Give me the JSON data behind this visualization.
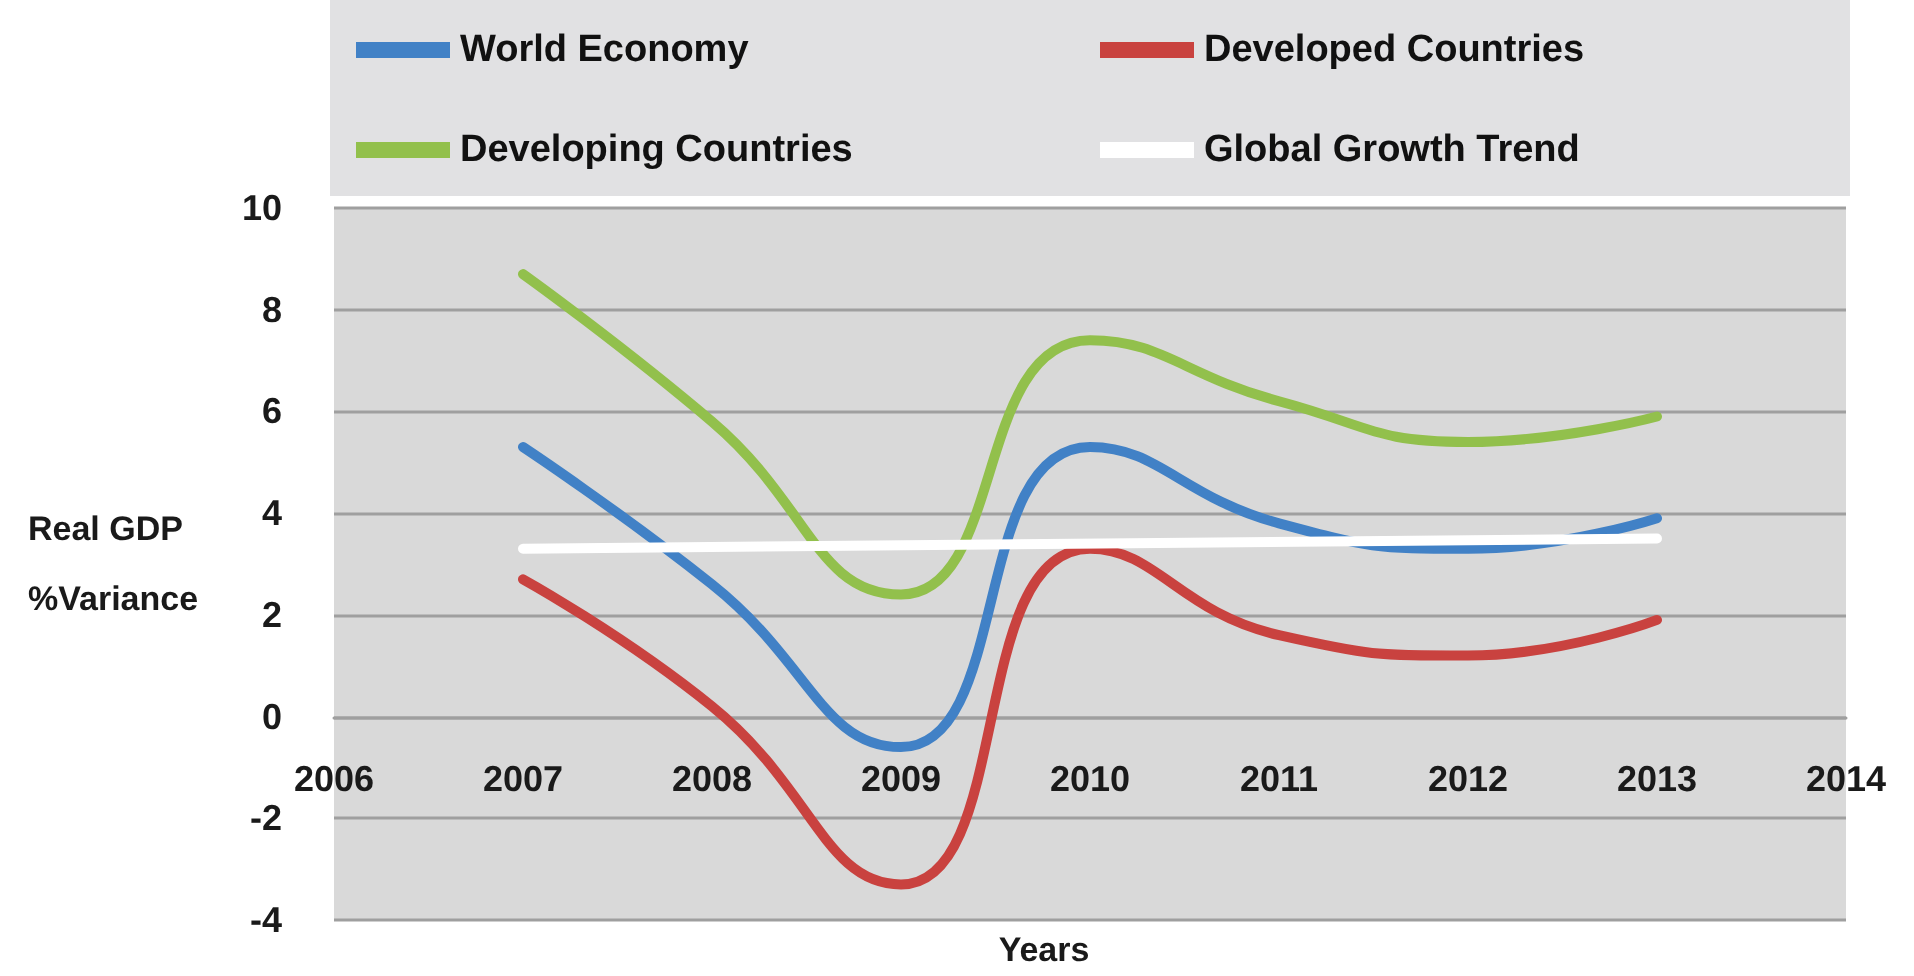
{
  "chart_data": {
    "type": "line",
    "xlabel": "Years",
    "ylabel": "Real GDP %Variance",
    "x": [
      2007,
      2008,
      2009,
      2010,
      2011,
      2012,
      2013
    ],
    "series": [
      {
        "name": "World Economy",
        "color": "#4181c6",
        "values": [
          5.3,
          2.6,
          -0.6,
          5.3,
          3.8,
          3.3,
          3.9
        ]
      },
      {
        "name": "Developed Countries",
        "color": "#c9423f",
        "values": [
          2.7,
          0.2,
          -3.3,
          3.3,
          1.6,
          1.2,
          1.9
        ]
      },
      {
        "name": "Developing Countries",
        "color": "#92c04c",
        "values": [
          8.7,
          5.8,
          2.4,
          7.4,
          6.2,
          5.4,
          5.9
        ]
      },
      {
        "name": "Global Growth Trend",
        "color": "#ffffff",
        "x": [
          2007,
          2013
        ],
        "values": [
          3.3,
          3.5
        ]
      }
    ],
    "xlim": [
      2006,
      2014
    ],
    "xticks": [
      2006,
      2007,
      2008,
      2009,
      2010,
      2011,
      2012,
      2013,
      2014
    ],
    "ylim": [
      -4,
      10
    ],
    "yticks": [
      -4,
      -2,
      0,
      2,
      4,
      6,
      8,
      10
    ],
    "grid": "y",
    "legend": "top",
    "marker": "none",
    "line_style": "solid"
  }
}
